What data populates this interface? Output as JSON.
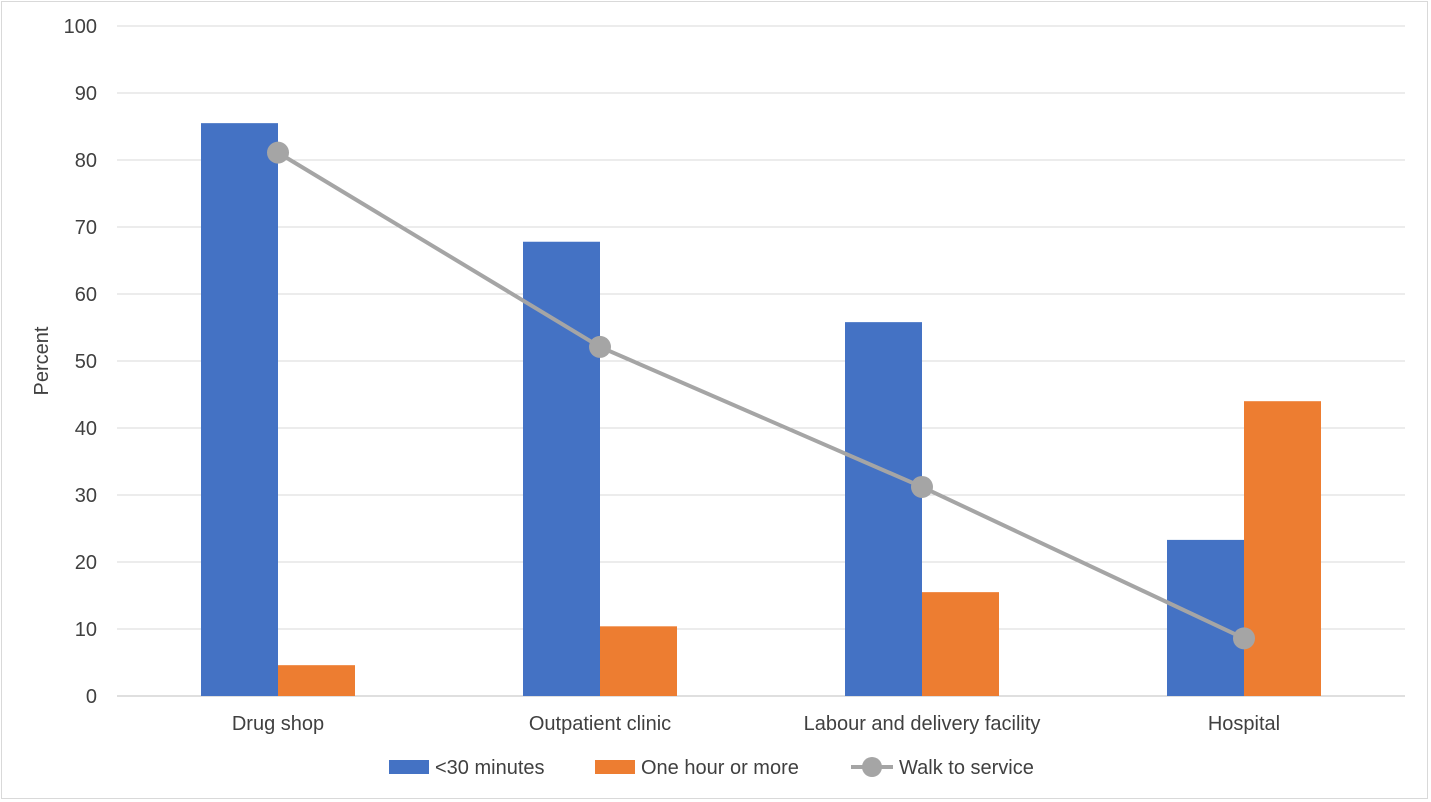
{
  "chart_data": {
    "type": "bar",
    "title": "",
    "xlabel": "",
    "ylabel": "Percent",
    "ylim": [
      0,
      100
    ],
    "yticks": [
      0,
      10,
      20,
      30,
      40,
      50,
      60,
      70,
      80,
      90,
      100
    ],
    "grid": true,
    "legend_position": "bottom",
    "categories": [
      "Drug shop",
      "Outpatient clinic",
      "Labour and delivery facility",
      "Hospital"
    ],
    "series": [
      {
        "name": "<30 minutes",
        "kind": "bar",
        "color": "#4472C4",
        "values": [
          85.5,
          67.8,
          55.8,
          23.3
        ]
      },
      {
        "name": "One hour or more",
        "kind": "bar",
        "color": "#ED7D31",
        "values": [
          4.6,
          10.4,
          15.5,
          44.0
        ]
      },
      {
        "name": "Walk to service",
        "kind": "line",
        "color": "#A5A5A5",
        "values": [
          81.1,
          52.1,
          31.2,
          8.6
        ]
      }
    ]
  }
}
